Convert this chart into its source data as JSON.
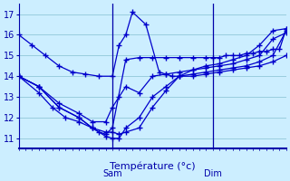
{
  "background_color": "#cceeff",
  "grid_color": "#99ccdd",
  "line_color": "#0000cc",
  "axis_color": "#0000aa",
  "xlabel": "Température (°c)",
  "ylim": [
    10.5,
    17.5
  ],
  "xlim": [
    0,
    40
  ],
  "yticks": [
    11,
    12,
    13,
    14,
    15,
    16,
    17
  ],
  "xticks_minor": 40,
  "sam_x": 14,
  "dim_x": 29,
  "s1_x": [
    0,
    2,
    4,
    6,
    8,
    10,
    12,
    14,
    15,
    16,
    17,
    19,
    21,
    22,
    23,
    24,
    26,
    28,
    30,
    32,
    34,
    36,
    38,
    40
  ],
  "s1_y": [
    16.0,
    15.5,
    15.0,
    14.5,
    14.2,
    14.1,
    14.0,
    14.0,
    15.5,
    16.0,
    17.1,
    16.5,
    14.2,
    14.1,
    14.0,
    14.0,
    14.3,
    14.5,
    14.6,
    14.8,
    15.0,
    15.5,
    16.2,
    16.3
  ],
  "s2_x": [
    0,
    3,
    6,
    9,
    11,
    13,
    14,
    15,
    16,
    18,
    20,
    22,
    24,
    26,
    28,
    30,
    32,
    34,
    36,
    38,
    40
  ],
  "s2_y": [
    14.0,
    13.5,
    12.5,
    12.0,
    11.5,
    11.1,
    11.0,
    11.0,
    11.5,
    12.0,
    13.0,
    13.5,
    14.0,
    14.0,
    14.1,
    14.2,
    14.3,
    14.4,
    14.5,
    14.7,
    15.0
  ],
  "s3_x": [
    0,
    3,
    6,
    9,
    11,
    13,
    14,
    15,
    16,
    18,
    20,
    22,
    24,
    26,
    28,
    30,
    32,
    34,
    36,
    38,
    40
  ],
  "s3_y": [
    14.0,
    13.5,
    12.7,
    12.2,
    11.8,
    11.8,
    12.5,
    13.0,
    13.5,
    13.2,
    14.0,
    14.1,
    14.2,
    14.3,
    14.4,
    14.5,
    14.6,
    14.8,
    15.0,
    15.8,
    16.1
  ],
  "s4_x": [
    0,
    3,
    6,
    9,
    11,
    13,
    14,
    15,
    16,
    18,
    20,
    22,
    24,
    26,
    28,
    30,
    32,
    34,
    36,
    38,
    40
  ],
  "s4_y": [
    14.0,
    13.5,
    12.5,
    12.0,
    11.5,
    11.3,
    11.3,
    11.2,
    11.3,
    11.5,
    12.5,
    13.3,
    14.0,
    14.1,
    14.2,
    14.3,
    14.4,
    14.5,
    14.7,
    15.0,
    16.2
  ],
  "s5_x": [
    0,
    3,
    5,
    7,
    9,
    11,
    12,
    13,
    14,
    16,
    18,
    20,
    22,
    24,
    26,
    28,
    29,
    30,
    31,
    32,
    33,
    34,
    35,
    36,
    37,
    38,
    39,
    40
  ],
  "s5_y": [
    14.0,
    13.2,
    12.5,
    12.0,
    11.8,
    11.5,
    11.3,
    11.2,
    11.5,
    14.8,
    14.9,
    14.9,
    14.9,
    14.9,
    14.9,
    14.9,
    14.9,
    14.9,
    15.0,
    15.0,
    15.0,
    15.1,
    15.1,
    15.2,
    15.2,
    15.3,
    15.3,
    16.3
  ]
}
